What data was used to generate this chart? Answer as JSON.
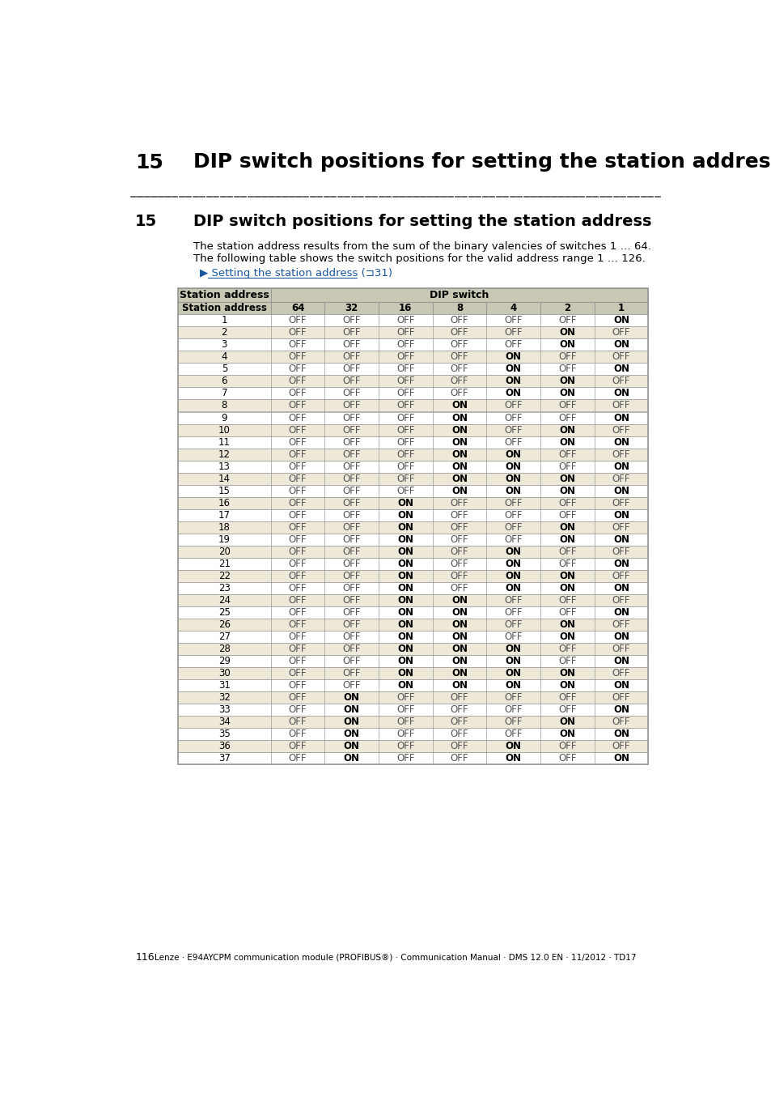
{
  "page_title": "15",
  "page_title_text": "DIP switch positions for setting the station address",
  "section_num": "15",
  "section_title": "DIP switch positions for setting the station address",
  "body_line1": "The station address results from the sum of the binary valencies of switches 1 … 64.",
  "body_line2": "The following table shows the switch positions for the valid address range 1 … 126.",
  "link_text": "▶ Setting the station address (⊐31)",
  "col_headers": [
    "Station address",
    "64",
    "32",
    "16",
    "8",
    "4",
    "2",
    "1"
  ],
  "dip_header": "DIP switch",
  "table_data": [
    [
      1,
      "OFF",
      "OFF",
      "OFF",
      "OFF",
      "OFF",
      "OFF",
      "ON"
    ],
    [
      2,
      "OFF",
      "OFF",
      "OFF",
      "OFF",
      "OFF",
      "ON",
      "OFF"
    ],
    [
      3,
      "OFF",
      "OFF",
      "OFF",
      "OFF",
      "OFF",
      "ON",
      "ON"
    ],
    [
      4,
      "OFF",
      "OFF",
      "OFF",
      "OFF",
      "ON",
      "OFF",
      "OFF"
    ],
    [
      5,
      "OFF",
      "OFF",
      "OFF",
      "OFF",
      "ON",
      "OFF",
      "ON"
    ],
    [
      6,
      "OFF",
      "OFF",
      "OFF",
      "OFF",
      "ON",
      "ON",
      "OFF"
    ],
    [
      7,
      "OFF",
      "OFF",
      "OFF",
      "OFF",
      "ON",
      "ON",
      "ON"
    ],
    [
      8,
      "OFF",
      "OFF",
      "OFF",
      "ON",
      "OFF",
      "OFF",
      "OFF"
    ],
    [
      9,
      "OFF",
      "OFF",
      "OFF",
      "ON",
      "OFF",
      "OFF",
      "ON"
    ],
    [
      10,
      "OFF",
      "OFF",
      "OFF",
      "ON",
      "OFF",
      "ON",
      "OFF"
    ],
    [
      11,
      "OFF",
      "OFF",
      "OFF",
      "ON",
      "OFF",
      "ON",
      "ON"
    ],
    [
      12,
      "OFF",
      "OFF",
      "OFF",
      "ON",
      "ON",
      "OFF",
      "OFF"
    ],
    [
      13,
      "OFF",
      "OFF",
      "OFF",
      "ON",
      "ON",
      "OFF",
      "ON"
    ],
    [
      14,
      "OFF",
      "OFF",
      "OFF",
      "ON",
      "ON",
      "ON",
      "OFF"
    ],
    [
      15,
      "OFF",
      "OFF",
      "OFF",
      "ON",
      "ON",
      "ON",
      "ON"
    ],
    [
      16,
      "OFF",
      "OFF",
      "ON",
      "OFF",
      "OFF",
      "OFF",
      "OFF"
    ],
    [
      17,
      "OFF",
      "OFF",
      "ON",
      "OFF",
      "OFF",
      "OFF",
      "ON"
    ],
    [
      18,
      "OFF",
      "OFF",
      "ON",
      "OFF",
      "OFF",
      "ON",
      "OFF"
    ],
    [
      19,
      "OFF",
      "OFF",
      "ON",
      "OFF",
      "OFF",
      "ON",
      "ON"
    ],
    [
      20,
      "OFF",
      "OFF",
      "ON",
      "OFF",
      "ON",
      "OFF",
      "OFF"
    ],
    [
      21,
      "OFF",
      "OFF",
      "ON",
      "OFF",
      "ON",
      "OFF",
      "ON"
    ],
    [
      22,
      "OFF",
      "OFF",
      "ON",
      "OFF",
      "ON",
      "ON",
      "OFF"
    ],
    [
      23,
      "OFF",
      "OFF",
      "ON",
      "OFF",
      "ON",
      "ON",
      "ON"
    ],
    [
      24,
      "OFF",
      "OFF",
      "ON",
      "ON",
      "OFF",
      "OFF",
      "OFF"
    ],
    [
      25,
      "OFF",
      "OFF",
      "ON",
      "ON",
      "OFF",
      "OFF",
      "ON"
    ],
    [
      26,
      "OFF",
      "OFF",
      "ON",
      "ON",
      "OFF",
      "ON",
      "OFF"
    ],
    [
      27,
      "OFF",
      "OFF",
      "ON",
      "ON",
      "OFF",
      "ON",
      "ON"
    ],
    [
      28,
      "OFF",
      "OFF",
      "ON",
      "ON",
      "ON",
      "OFF",
      "OFF"
    ],
    [
      29,
      "OFF",
      "OFF",
      "ON",
      "ON",
      "ON",
      "OFF",
      "ON"
    ],
    [
      30,
      "OFF",
      "OFF",
      "ON",
      "ON",
      "ON",
      "ON",
      "OFF"
    ],
    [
      31,
      "OFF",
      "OFF",
      "ON",
      "ON",
      "ON",
      "ON",
      "ON"
    ],
    [
      32,
      "OFF",
      "ON",
      "OFF",
      "OFF",
      "OFF",
      "OFF",
      "OFF"
    ],
    [
      33,
      "OFF",
      "ON",
      "OFF",
      "OFF",
      "OFF",
      "OFF",
      "ON"
    ],
    [
      34,
      "OFF",
      "ON",
      "OFF",
      "OFF",
      "OFF",
      "ON",
      "OFF"
    ],
    [
      35,
      "OFF",
      "ON",
      "OFF",
      "OFF",
      "OFF",
      "ON",
      "ON"
    ],
    [
      36,
      "OFF",
      "ON",
      "OFF",
      "OFF",
      "ON",
      "OFF",
      "OFF"
    ],
    [
      37,
      "OFF",
      "ON",
      "OFF",
      "OFF",
      "ON",
      "OFF",
      "ON"
    ]
  ],
  "footer_text": "Lenze · E94AYCPM communication module (PROFIBUS®) · Communication Manual · DMS 12.0 EN · 11/2012 · TD17",
  "footer_page": "116",
  "bg_color": "#ffffff",
  "header_bg": "#c8c8b4",
  "row_odd_bg": "#ede8d8",
  "row_even_bg": "#ffffff",
  "border_color": "#999999",
  "text_color": "#000000",
  "on_color": "#000000",
  "off_color": "#555555",
  "link_color": "#1a56a0",
  "dashed_line_color": "#555555"
}
